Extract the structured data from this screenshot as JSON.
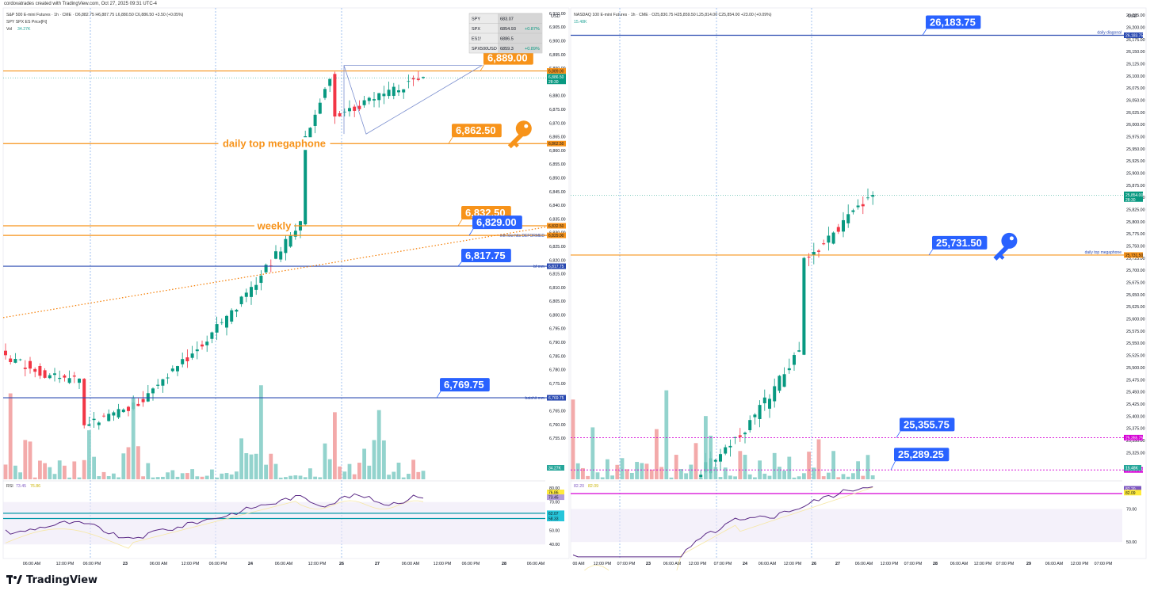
{
  "watermark": "cordovatrades created with TradingView.com, Oct 27, 2025 09:31 UTC-4",
  "footer": {
    "brand": "TradingView"
  },
  "chart_data": [
    {
      "type": "candlestick",
      "title": "S&P 500 E-mini Futures · 1h · CME",
      "ohlc_text": "O6,882.75 H6,887.75 L6,880.50 C6,886.50 +3.50 (+0.05%)",
      "overlay": "SPY SPX ES Price[Ft]",
      "volume_label": "Vol",
      "volume_value": "34.27K",
      "currency": "USD",
      "ylim": [
        6740,
        6912
      ],
      "price_ticks": [
        "6,910.00",
        "6,905.00",
        "6,900.00",
        "6,895.00",
        "6,890.00",
        "6,885.00",
        "6,880.00",
        "6,875.00",
        "6,870.00",
        "6,865.00",
        "6,860.00",
        "6,855.00",
        "6,850.00",
        "6,845.00",
        "6,840.00",
        "6,835.00",
        "6,830.00",
        "6,825.00",
        "6,820.00",
        "6,815.00",
        "6,810.00",
        "6,805.00",
        "6,800.00",
        "6,795.00",
        "6,790.00",
        "6,785.00",
        "6,780.00",
        "6,775.00",
        "6,770.00",
        "6,765.00",
        "6,760.00",
        "6,755.00"
      ],
      "price_tick_values": [
        6910,
        6905,
        6900,
        6895,
        6890,
        6885,
        6880,
        6875,
        6870,
        6865,
        6860,
        6855,
        6850,
        6845,
        6840,
        6835,
        6830,
        6825,
        6820,
        6815,
        6810,
        6805,
        6800,
        6795,
        6790,
        6785,
        6780,
        6775,
        6770,
        6765,
        6760,
        6755
      ],
      "time_ticks": [
        "06:00 AM",
        "12:00 PM",
        "06:00 PM",
        "23",
        "06:00 AM",
        "12:00 PM",
        "06:00 PM",
        "24",
        "06:00 AM",
        "12:00 PM",
        "26",
        "27",
        "06:00 AM",
        "12:00 PM",
        "06:00 PM",
        "28",
        "06:00 AM"
      ],
      "comparison_table": [
        {
          "symbol": "SPY",
          "value": "683.07",
          "change": ""
        },
        {
          "symbol": "SPX",
          "value": "6854.93",
          "change": "+0.87%"
        },
        {
          "symbol": "ES1!",
          "value": "6886.5",
          "change": ""
        },
        {
          "symbol": "SPX500USD",
          "value": "6859.3",
          "change": "+0.89%"
        }
      ],
      "levels": [
        {
          "price": 6889.0,
          "label": "6,889.00",
          "axis_label": "6,889.00",
          "color": "#f7931a",
          "callout": true,
          "callout_color": "#f7931a"
        },
        {
          "price": 6862.5,
          "label": "6,862.50",
          "axis_label": "6,862.50",
          "text": "daily top megaphone",
          "color": "#f7931a",
          "callout": true,
          "callout_color": "#f7931a",
          "key_icon": true
        },
        {
          "price": 6832.5,
          "label": "6,832.50",
          "axis_label": "6,832.50",
          "text": "weekly",
          "color": "#f7931a",
          "callout": true,
          "callout_color": "#f7931a"
        },
        {
          "price": 6829.0,
          "label": "6,829.00",
          "axis_label": "6,829.00",
          "line_label": "mm low hits DEFORMED",
          "color": "#f7931a",
          "callout": true,
          "callout_color": "#2962ff"
        },
        {
          "price": 6817.75,
          "label": "6,817.75",
          "axis_label": "6,817.75",
          "line_label": "bf mm",
          "color": "#2848b0",
          "callout": true,
          "callout_color": "#2962ff"
        },
        {
          "price": 6769.75,
          "label": "6,769.75",
          "axis_label": "6,769.75",
          "line_label": "batshit mm",
          "color": "#2848b0",
          "callout": true,
          "callout_color": "#2962ff"
        }
      ],
      "last_price": {
        "price": 6886.5,
        "label": "6,886.50",
        "countdown": "28:30"
      },
      "volume_axis_label": "34.27K",
      "rsi": {
        "label": "RSI",
        "value": "73.45",
        "ma_value": "76.86",
        "ticks": [
          "80.00",
          "70.00",
          "50.00",
          "40.00"
        ],
        "tick_values": [
          80,
          70,
          50,
          40
        ],
        "ylim": [
          30,
          85
        ],
        "axis_values": [
          "76.86",
          "73.45",
          "62.07",
          "58.33"
        ],
        "upper_band": 62.07,
        "lower_band": 58.33
      }
    },
    {
      "type": "candlestick",
      "title": "NASDAQ 100 E-mini Futures · 1h · CME",
      "ohlc_text": "O25,830.75 H25,859.50 L25,814.00 C25,854.00 +23.00 (+0.09%)",
      "volume_value": "15.48K",
      "currency": "USD",
      "ylim": [
        25270,
        26240
      ],
      "price_ticks": [
        "26,225.00",
        "26,200.00",
        "26,175.00",
        "26,150.00",
        "26,125.00",
        "26,100.00",
        "26,075.00",
        "26,050.00",
        "26,025.00",
        "26,000.00",
        "25,975.00",
        "25,950.00",
        "25,925.00",
        "25,900.00",
        "25,875.00",
        "25,850.00",
        "25,825.00",
        "25,800.00",
        "25,775.00",
        "25,750.00",
        "25,725.00",
        "25,700.00",
        "25,675.00",
        "25,650.00",
        "25,625.00",
        "25,600.00",
        "25,575.00",
        "25,550.00",
        "25,525.00",
        "25,500.00",
        "25,475.00",
        "25,450.00",
        "25,425.00",
        "25,400.00",
        "25,375.00",
        "25,350.00",
        "25,325.00"
      ],
      "price_tick_values": [
        26225,
        26200,
        26175,
        26150,
        26125,
        26100,
        26075,
        26050,
        26025,
        26000,
        25975,
        25950,
        25925,
        25900,
        25875,
        25850,
        25825,
        25800,
        25775,
        25750,
        25725,
        25700,
        25675,
        25650,
        25625,
        25600,
        25575,
        25550,
        25525,
        25500,
        25475,
        25450,
        25425,
        25400,
        25375,
        25350,
        25325
      ],
      "time_ticks": [
        "00 AM",
        "12:00 PM",
        "07:00 PM",
        "23",
        "06:00 AM",
        "12:00 PM",
        "07:00 PM",
        "24",
        "06:00 AM",
        "12:00 PM",
        "26",
        "27",
        "06:00 AM",
        "12:00 PM",
        "07:00 PM",
        "28",
        "06:00 AM",
        "12:00 PM",
        "07:00 PM",
        "29",
        "06:00 AM",
        "12:00 PM",
        "07:00 PM"
      ],
      "levels": [
        {
          "price": 26183.75,
          "label": "26,183.75",
          "axis_label": "26,183.75",
          "line_label": "daily diagonal",
          "color": "#2848b0",
          "callout": true,
          "callout_color": "#2962ff"
        },
        {
          "price": 25731.5,
          "label": "25,731.50",
          "axis_label": "25,731.50",
          "line_label": "daily top megaphone",
          "color": "#f7931a",
          "callout": true,
          "callout_color": "#2962ff",
          "key_icon": true
        },
        {
          "price": 25355.75,
          "label": "25,355.75",
          "axis_label": "25,355.75",
          "color": "#d500d5",
          "dotted": true,
          "callout": true,
          "callout_color": "#2962ff"
        },
        {
          "price": 25289.25,
          "label": "25,289.25",
          "axis_label": "25,289.25",
          "color": "#d500d5",
          "dotted": true,
          "callout": true,
          "callout_color": "#2962ff"
        }
      ],
      "last_price": {
        "price": 25854.0,
        "label": "25,854.00",
        "countdown": "28:30"
      },
      "volume_axis_label": "15.48K",
      "rsi": {
        "label": "",
        "value": "82.20",
        "ma_value": "82.09",
        "ticks": [
          "70.00",
          "50.00"
        ],
        "tick_values": [
          70,
          50
        ],
        "ylim": [
          40,
          87
        ],
        "axis_values": [
          "82.20",
          "82.09"
        ]
      }
    }
  ]
}
